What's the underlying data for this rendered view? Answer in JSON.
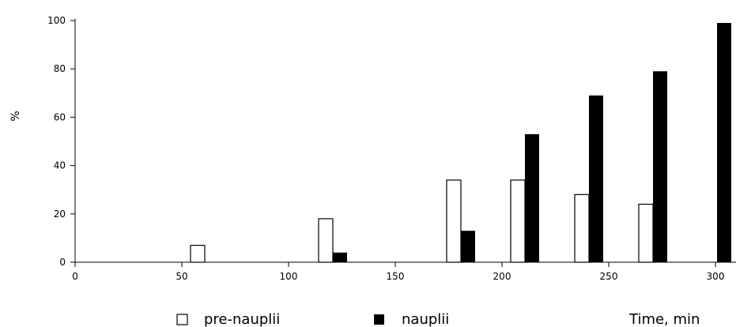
{
  "chart_data": {
    "type": "bar",
    "ylabel": "%",
    "xlabel": "Time, min",
    "xlim": [
      0,
      305
    ],
    "ylim": [
      0,
      100
    ],
    "x_ticks": [
      0,
      50,
      100,
      150,
      200,
      250,
      300
    ],
    "y_ticks": [
      0,
      20,
      40,
      60,
      80,
      100
    ],
    "legend_position": "bottom",
    "series": [
      {
        "name": "pre-nauplii",
        "style": "hollow",
        "color": "#000000",
        "points": [
          {
            "x": 60,
            "y": 7
          },
          {
            "x": 120,
            "y": 18
          },
          {
            "x": 180,
            "y": 34
          },
          {
            "x": 210,
            "y": 34
          },
          {
            "x": 240,
            "y": 28
          },
          {
            "x": 270,
            "y": 24
          }
        ]
      },
      {
        "name": "nauplii",
        "style": "filled",
        "color": "#000000",
        "points": [
          {
            "x": 120,
            "y": 4
          },
          {
            "x": 180,
            "y": 13
          },
          {
            "x": 210,
            "y": 53
          },
          {
            "x": 240,
            "y": 69
          },
          {
            "x": 270,
            "y": 79
          },
          {
            "x": 300,
            "y": 99
          }
        ]
      }
    ]
  }
}
